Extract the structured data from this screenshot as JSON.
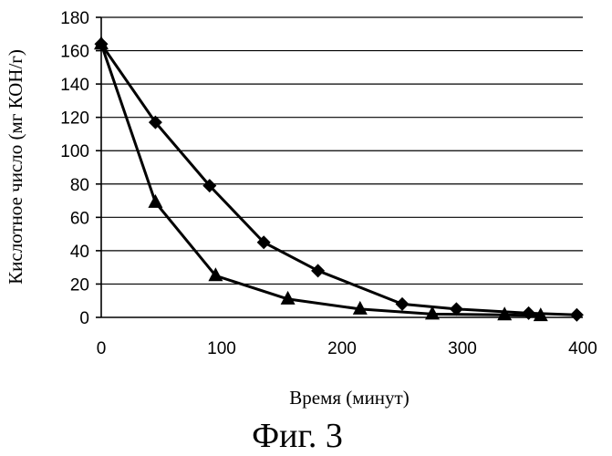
{
  "figure": {
    "caption": "Фиг. 3"
  },
  "chart_data": {
    "type": "line",
    "xlabel": "Время (минут)",
    "ylabel": "Кислотное число (мг КОН/г)",
    "xlim": [
      0,
      400
    ],
    "ylim": [
      0,
      180
    ],
    "x_ticks": [
      0,
      100,
      200,
      300,
      400
    ],
    "y_ticks": [
      0,
      20,
      40,
      60,
      80,
      100,
      120,
      140,
      160,
      180
    ],
    "grid": "horizontal",
    "series": [
      {
        "marker": "diamond",
        "x": [
          0,
          45,
          90,
          135,
          180,
          250,
          295,
          355,
          395
        ],
        "y": [
          164,
          117,
          79,
          45,
          28,
          8,
          5,
          2.5,
          1.5
        ]
      },
      {
        "marker": "triangle",
        "x": [
          0,
          45,
          95,
          155,
          215,
          275,
          335,
          365
        ],
        "y": [
          164,
          69,
          25,
          11,
          5,
          2,
          1.5,
          1
        ]
      }
    ]
  }
}
